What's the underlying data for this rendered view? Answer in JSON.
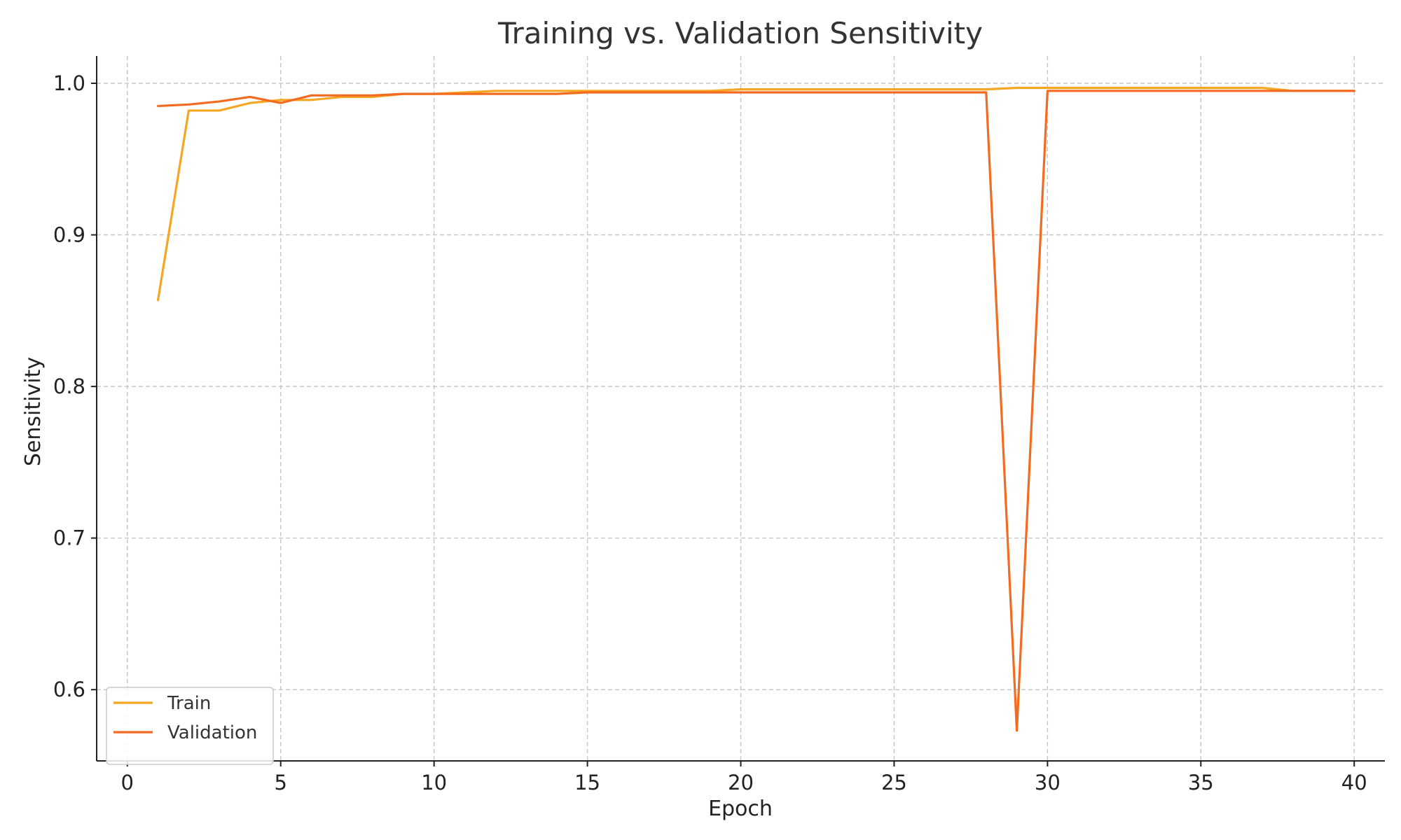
{
  "chart_data": {
    "type": "line",
    "title": "Training vs. Validation Sensitivity",
    "xlabel": "Epoch",
    "ylabel": "Sensitivity",
    "xlim": [
      -1,
      41
    ],
    "ylim": [
      0.553,
      1.018
    ],
    "xticks": [
      0,
      5,
      10,
      15,
      20,
      25,
      30,
      35,
      40
    ],
    "yticks": [
      0.6,
      0.7,
      0.8,
      0.9,
      1.0
    ],
    "grid": true,
    "legend_position": "lower-left",
    "x": [
      1,
      2,
      3,
      4,
      5,
      6,
      7,
      8,
      9,
      10,
      11,
      12,
      13,
      14,
      15,
      16,
      17,
      18,
      19,
      20,
      21,
      22,
      23,
      24,
      25,
      26,
      27,
      28,
      29,
      30,
      31,
      32,
      33,
      34,
      35,
      36,
      37,
      38,
      39,
      40
    ],
    "series": [
      {
        "name": "Train",
        "color": "#F5A623",
        "values": [
          0.857,
          0.982,
          0.982,
          0.987,
          0.989,
          0.989,
          0.991,
          0.991,
          0.993,
          0.993,
          0.994,
          0.995,
          0.995,
          0.995,
          0.995,
          0.995,
          0.995,
          0.995,
          0.995,
          0.996,
          0.996,
          0.996,
          0.996,
          0.996,
          0.996,
          0.996,
          0.996,
          0.996,
          0.997,
          0.997,
          0.997,
          0.997,
          0.997,
          0.997,
          0.997,
          0.997,
          0.997,
          0.995,
          0.995,
          0.995
        ]
      },
      {
        "name": "Validation",
        "color": "#F26B21",
        "values": [
          0.985,
          0.986,
          0.988,
          0.991,
          0.987,
          0.992,
          0.992,
          0.992,
          0.993,
          0.993,
          0.993,
          0.993,
          0.993,
          0.993,
          0.994,
          0.994,
          0.994,
          0.994,
          0.994,
          0.994,
          0.994,
          0.994,
          0.994,
          0.994,
          0.994,
          0.994,
          0.994,
          0.994,
          0.573,
          0.995,
          0.995,
          0.995,
          0.995,
          0.995,
          0.995,
          0.995,
          0.995,
          0.995,
          0.995,
          0.995
        ]
      }
    ]
  }
}
